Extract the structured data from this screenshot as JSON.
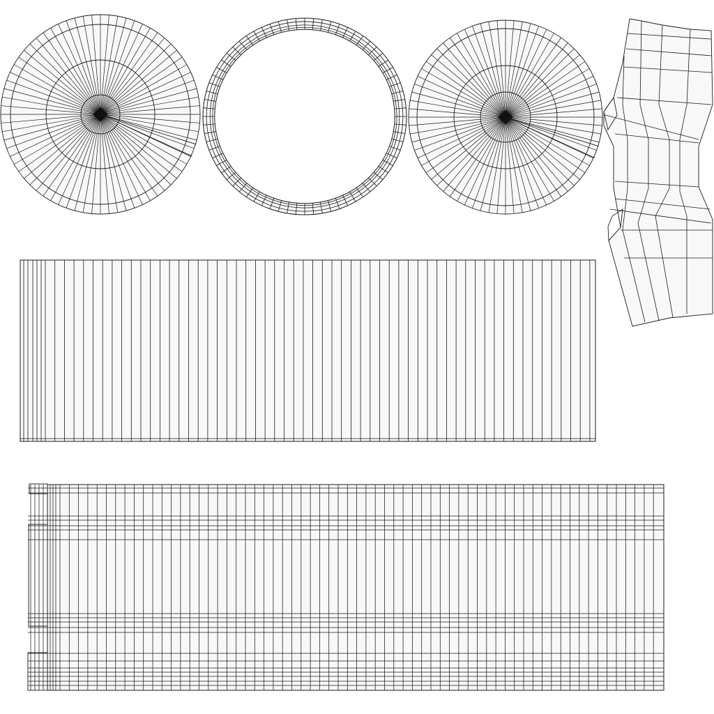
{
  "uv_layout": {
    "background_color": "#ffffff",
    "island_fill_color": "#f8f8f8",
    "wire_color": "#1a1a1a",
    "islands": [
      {
        "name": "cap-disc-left",
        "kind": "radial-disc",
        "spokes": 72,
        "rings": 4
      },
      {
        "name": "ring-band",
        "kind": "ring",
        "segments": 72,
        "loops": 3
      },
      {
        "name": "cap-disc-right",
        "kind": "radial-disc",
        "spokes": 72,
        "rings": 4
      },
      {
        "name": "side-strip",
        "kind": "irregular-strip"
      },
      {
        "name": "grid-panel-middle",
        "kind": "column-grid",
        "columns": 62
      },
      {
        "name": "grid-panel-bottom",
        "kind": "column-row-grid",
        "columns": 68
      }
    ]
  }
}
